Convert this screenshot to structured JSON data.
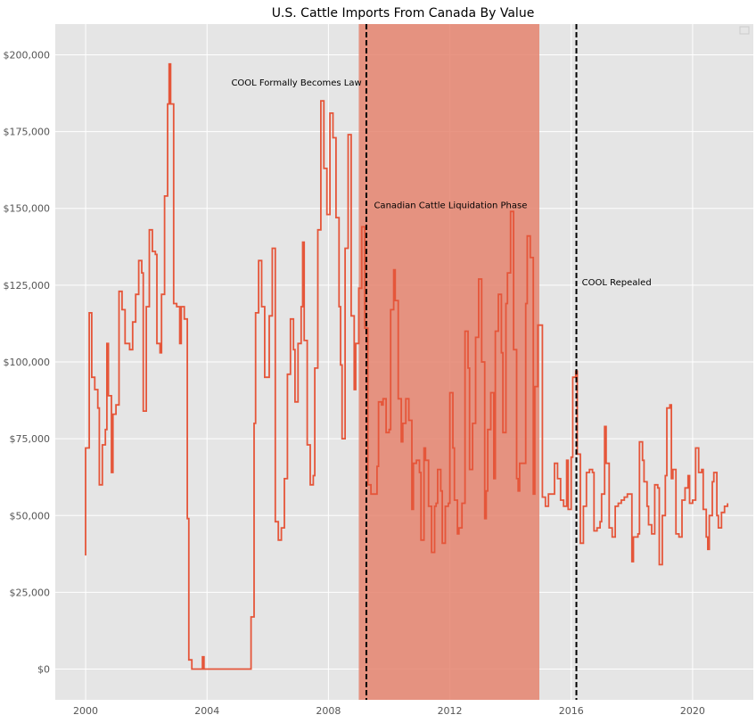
{
  "chart_data": {
    "type": "line",
    "title": "U.S. Cattle Imports From Canada By Value",
    "xlabel": "",
    "ylabel": "",
    "xlim": [
      1999.0,
      2022.0
    ],
    "ylim": [
      -10000,
      210000
    ],
    "x_ticks": [
      2000,
      2004,
      2008,
      2012,
      2016,
      2020
    ],
    "x_tick_labels": [
      "2000",
      "2004",
      "2008",
      "2012",
      "2016",
      "2020"
    ],
    "y_ticks": [
      0,
      25000,
      50000,
      75000,
      100000,
      125000,
      150000,
      175000,
      200000
    ],
    "y_tick_labels": [
      "$0",
      "$25,000",
      "$50,000",
      "$75,000",
      "$100,000",
      "$125,000",
      "$150,000",
      "$175,000",
      "$200,000"
    ],
    "grid": true,
    "legend": "top-right (empty)",
    "line_color": "#e5563a",
    "shade_color": "#e5846f",
    "shaded_region": {
      "x": [
        2009.0,
        2014.95
      ],
      "label": "Canadian Cattle Liquidation Phase",
      "label_at": [
        2009.5,
        150000
      ]
    },
    "vlines": [
      {
        "x": 2009.25,
        "label": "COOL Formally Becomes Law",
        "label_at": [
          2004.8,
          190000
        ]
      },
      {
        "x": 2016.17,
        "label": "COOL Repealed",
        "label_at": [
          2016.35,
          125000
        ]
      }
    ],
    "series": [
      {
        "name": "",
        "points": [
          [
            2000.0,
            37000
          ],
          [
            2000.0,
            72000
          ],
          [
            2000.12,
            116000
          ],
          [
            2000.2,
            95000
          ],
          [
            2000.3,
            91000
          ],
          [
            2000.4,
            85000
          ],
          [
            2000.45,
            60000
          ],
          [
            2000.55,
            73000
          ],
          [
            2000.65,
            78000
          ],
          [
            2000.7,
            106000
          ],
          [
            2000.75,
            89000
          ],
          [
            2000.85,
            64000
          ],
          [
            2000.9,
            83000
          ],
          [
            2001.0,
            86000
          ],
          [
            2001.1,
            123000
          ],
          [
            2001.2,
            117000
          ],
          [
            2001.3,
            106000
          ],
          [
            2001.45,
            104000
          ],
          [
            2001.55,
            113000
          ],
          [
            2001.65,
            122000
          ],
          [
            2001.75,
            133000
          ],
          [
            2001.85,
            129000
          ],
          [
            2001.9,
            84000
          ],
          [
            2002.0,
            118000
          ],
          [
            2002.1,
            143000
          ],
          [
            2002.2,
            136000
          ],
          [
            2002.3,
            135000
          ],
          [
            2002.35,
            106000
          ],
          [
            2002.45,
            103000
          ],
          [
            2002.5,
            122000
          ],
          [
            2002.6,
            154000
          ],
          [
            2002.7,
            184000
          ],
          [
            2002.75,
            197000
          ],
          [
            2002.8,
            184000
          ],
          [
            2002.9,
            119000
          ],
          [
            2003.0,
            118000
          ],
          [
            2003.1,
            106000
          ],
          [
            2003.15,
            118000
          ],
          [
            2003.25,
            114000
          ],
          [
            2003.35,
            49000
          ],
          [
            2003.4,
            3000
          ],
          [
            2003.5,
            0
          ],
          [
            2003.85,
            4000
          ],
          [
            2003.9,
            0
          ],
          [
            2005.45,
            0
          ],
          [
            2005.45,
            17000
          ],
          [
            2005.55,
            80000
          ],
          [
            2005.6,
            116000
          ],
          [
            2005.7,
            133000
          ],
          [
            2005.8,
            118000
          ],
          [
            2005.9,
            95000
          ],
          [
            2006.05,
            115000
          ],
          [
            2006.15,
            137000
          ],
          [
            2006.25,
            48000
          ],
          [
            2006.35,
            42000
          ],
          [
            2006.45,
            46000
          ],
          [
            2006.55,
            62000
          ],
          [
            2006.65,
            96000
          ],
          [
            2006.75,
            114000
          ],
          [
            2006.85,
            104000
          ],
          [
            2006.9,
            87000
          ],
          [
            2007.0,
            106000
          ],
          [
            2007.1,
            118000
          ],
          [
            2007.15,
            139000
          ],
          [
            2007.2,
            107000
          ],
          [
            2007.3,
            73000
          ],
          [
            2007.4,
            60000
          ],
          [
            2007.5,
            63000
          ],
          [
            2007.55,
            98000
          ],
          [
            2007.65,
            143000
          ],
          [
            2007.75,
            185000
          ],
          [
            2007.85,
            163000
          ],
          [
            2007.95,
            148000
          ],
          [
            2008.05,
            181000
          ],
          [
            2008.15,
            173000
          ],
          [
            2008.25,
            147000
          ],
          [
            2008.35,
            118000
          ],
          [
            2008.4,
            99000
          ],
          [
            2008.45,
            75000
          ],
          [
            2008.55,
            137000
          ],
          [
            2008.65,
            174000
          ],
          [
            2008.75,
            115000
          ],
          [
            2008.85,
            91000
          ],
          [
            2008.9,
            106000
          ],
          [
            2009.0,
            124000
          ],
          [
            2009.1,
            144000
          ],
          [
            2009.2,
            111000
          ],
          [
            2009.3,
            60000
          ],
          [
            2009.4,
            57000
          ],
          [
            2009.6,
            66000
          ],
          [
            2009.65,
            87000
          ],
          [
            2009.75,
            86000
          ],
          [
            2009.8,
            88000
          ],
          [
            2009.9,
            77000
          ],
          [
            2010.0,
            78000
          ],
          [
            2010.05,
            117000
          ],
          [
            2010.15,
            130000
          ],
          [
            2010.2,
            120000
          ],
          [
            2010.3,
            88000
          ],
          [
            2010.4,
            74000
          ],
          [
            2010.45,
            80000
          ],
          [
            2010.55,
            88000
          ],
          [
            2010.65,
            81000
          ],
          [
            2010.75,
            52000
          ],
          [
            2010.8,
            67000
          ],
          [
            2010.9,
            68000
          ],
          [
            2011.0,
            64000
          ],
          [
            2011.05,
            42000
          ],
          [
            2011.15,
            72000
          ],
          [
            2011.2,
            68000
          ],
          [
            2011.3,
            53000
          ],
          [
            2011.4,
            38000
          ],
          [
            2011.5,
            53000
          ],
          [
            2011.55,
            54000
          ],
          [
            2011.6,
            65000
          ],
          [
            2011.7,
            58000
          ],
          [
            2011.75,
            41000
          ],
          [
            2011.85,
            53000
          ],
          [
            2011.95,
            54000
          ],
          [
            2012.0,
            90000
          ],
          [
            2012.1,
            72000
          ],
          [
            2012.15,
            55000
          ],
          [
            2012.25,
            44000
          ],
          [
            2012.3,
            46000
          ],
          [
            2012.4,
            54000
          ],
          [
            2012.5,
            110000
          ],
          [
            2012.6,
            98000
          ],
          [
            2012.65,
            65000
          ],
          [
            2012.75,
            80000
          ],
          [
            2012.85,
            108000
          ],
          [
            2012.95,
            127000
          ],
          [
            2013.05,
            100000
          ],
          [
            2013.15,
            49000
          ],
          [
            2013.2,
            58000
          ],
          [
            2013.25,
            78000
          ],
          [
            2013.35,
            90000
          ],
          [
            2013.45,
            62000
          ],
          [
            2013.5,
            110000
          ],
          [
            2013.6,
            122000
          ],
          [
            2013.7,
            103000
          ],
          [
            2013.75,
            77000
          ],
          [
            2013.85,
            119000
          ],
          [
            2013.9,
            129000
          ],
          [
            2014.0,
            149000
          ],
          [
            2014.1,
            104000
          ],
          [
            2014.2,
            62000
          ],
          [
            2014.25,
            58000
          ],
          [
            2014.3,
            67000
          ],
          [
            2014.45,
            67000
          ],
          [
            2014.5,
            119000
          ],
          [
            2014.55,
            141000
          ],
          [
            2014.65,
            134000
          ],
          [
            2014.75,
            57000
          ],
          [
            2014.8,
            92000
          ],
          [
            2014.9,
            112000
          ],
          [
            2015.05,
            56000
          ],
          [
            2015.15,
            53000
          ],
          [
            2015.25,
            57000
          ],
          [
            2015.35,
            57000
          ],
          [
            2015.45,
            67000
          ],
          [
            2015.55,
            62000
          ],
          [
            2015.65,
            55000
          ],
          [
            2015.75,
            53000
          ],
          [
            2015.85,
            68000
          ],
          [
            2015.9,
            52000
          ],
          [
            2016.0,
            69000
          ],
          [
            2016.05,
            95000
          ],
          [
            2016.15,
            97000
          ],
          [
            2016.2,
            70000
          ],
          [
            2016.3,
            41000
          ],
          [
            2016.4,
            53000
          ],
          [
            2016.5,
            64000
          ],
          [
            2016.6,
            65000
          ],
          [
            2016.7,
            64000
          ],
          [
            2016.75,
            45000
          ],
          [
            2016.85,
            46000
          ],
          [
            2016.95,
            48000
          ],
          [
            2017.0,
            57000
          ],
          [
            2017.1,
            79000
          ],
          [
            2017.15,
            67000
          ],
          [
            2017.25,
            46000
          ],
          [
            2017.35,
            43000
          ],
          [
            2017.45,
            53000
          ],
          [
            2017.55,
            54000
          ],
          [
            2017.65,
            55000
          ],
          [
            2017.75,
            56000
          ],
          [
            2017.85,
            57000
          ],
          [
            2018.0,
            35000
          ],
          [
            2018.05,
            43000
          ],
          [
            2018.2,
            44000
          ],
          [
            2018.25,
            74000
          ],
          [
            2018.35,
            68000
          ],
          [
            2018.4,
            61000
          ],
          [
            2018.5,
            53000
          ],
          [
            2018.55,
            47000
          ],
          [
            2018.65,
            44000
          ],
          [
            2018.75,
            60000
          ],
          [
            2018.85,
            59000
          ],
          [
            2018.9,
            34000
          ],
          [
            2019.0,
            50000
          ],
          [
            2019.1,
            63000
          ],
          [
            2019.15,
            85000
          ],
          [
            2019.25,
            86000
          ],
          [
            2019.3,
            62000
          ],
          [
            2019.35,
            65000
          ],
          [
            2019.45,
            44000
          ],
          [
            2019.55,
            43000
          ],
          [
            2019.65,
            55000
          ],
          [
            2019.75,
            59000
          ],
          [
            2019.85,
            63000
          ],
          [
            2019.9,
            54000
          ],
          [
            2020.0,
            55000
          ],
          [
            2020.1,
            72000
          ],
          [
            2020.2,
            64000
          ],
          [
            2020.3,
            65000
          ],
          [
            2020.35,
            52000
          ],
          [
            2020.45,
            43000
          ],
          [
            2020.5,
            39000
          ],
          [
            2020.55,
            50000
          ],
          [
            2020.65,
            61000
          ],
          [
            2020.7,
            64000
          ],
          [
            2020.8,
            50000
          ],
          [
            2020.85,
            46000
          ],
          [
            2020.95,
            51000
          ],
          [
            2021.05,
            53000
          ],
          [
            2021.15,
            54000
          ]
        ]
      }
    ]
  }
}
